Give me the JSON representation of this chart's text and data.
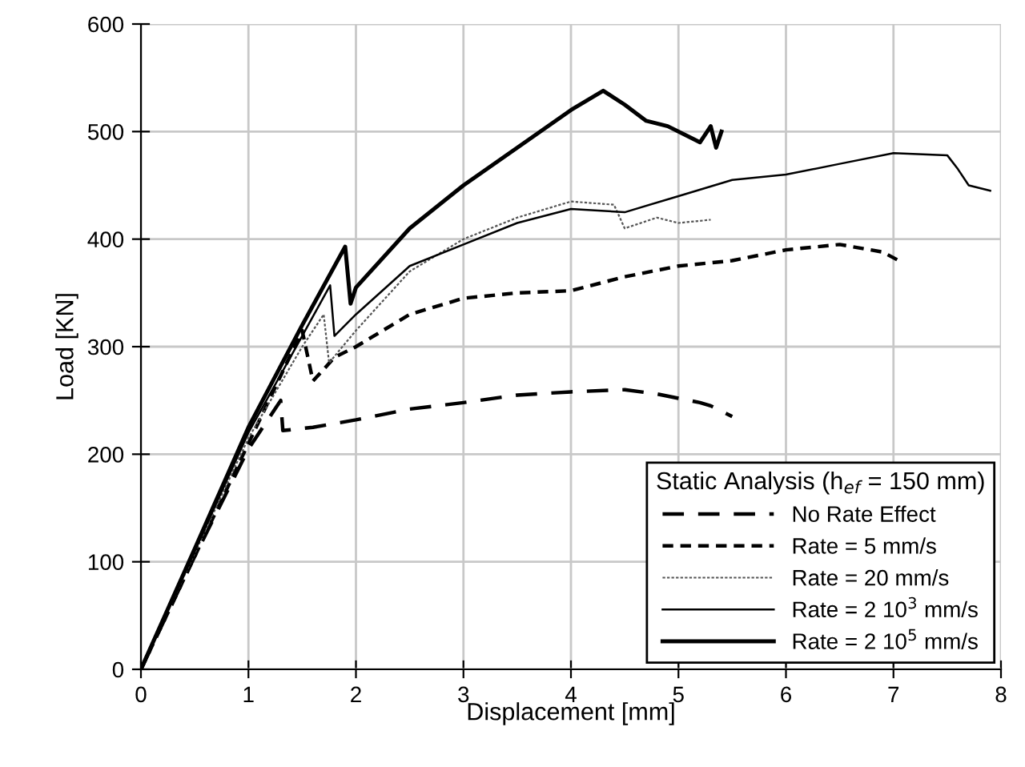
{
  "chart_data": {
    "type": "line",
    "xlabel": "Displacement [mm]",
    "ylabel": "Load [KN]",
    "legend_title": "Static Analysis (h$_{ef}$ = 150 mm)",
    "xlim": [
      0,
      8
    ],
    "ylim": [
      0,
      600
    ],
    "xticks": [
      0,
      1,
      2,
      3,
      4,
      5,
      6,
      7,
      8
    ],
    "yticks": [
      0,
      100,
      200,
      300,
      400,
      500,
      600
    ],
    "grid": true,
    "legend": "bottom right",
    "marker": "none",
    "series": [
      {
        "name": "No Rate Effect",
        "color": "#000000",
        "line_style": "dashed",
        "x": [
          0,
          0.5,
          1.0,
          1.3,
          1.32,
          1.6,
          2.0,
          2.5,
          3.0,
          3.5,
          4.0,
          4.5,
          4.8,
          5.0,
          5.2,
          5.3,
          5.4,
          5.5
        ],
        "values": [
          0,
          105,
          205,
          250,
          222,
          225,
          232,
          242,
          248,
          255,
          258,
          260,
          256,
          252,
          248,
          245,
          240,
          235
        ]
      },
      {
        "name": "Rate = 5 mm/s",
        "color": "#000000",
        "line_style": "dashed",
        "x": [
          0,
          0.5,
          1.0,
          1.5,
          1.6,
          1.8,
          2.0,
          2.5,
          3.0,
          3.5,
          4.0,
          4.5,
          5.0,
          5.5,
          6.0,
          6.5,
          6.9,
          7.05
        ],
        "values": [
          0,
          105,
          210,
          315,
          268,
          290,
          300,
          330,
          345,
          350,
          352,
          365,
          375,
          380,
          390,
          395,
          388,
          380
        ]
      },
      {
        "name": "Rate = 20 mm/s",
        "color": "#555555",
        "line_style": "dotted",
        "x": [
          0,
          0.5,
          1.0,
          1.5,
          1.7,
          1.75,
          2.0,
          2.5,
          3.0,
          3.5,
          4.0,
          4.4,
          4.5,
          4.8,
          5.0,
          5.3
        ],
        "values": [
          0,
          108,
          215,
          300,
          330,
          285,
          315,
          370,
          400,
          420,
          435,
          432,
          410,
          420,
          415,
          418
        ]
      },
      {
        "name": "Rate = 2 10$^{3}$ mm/s",
        "color": "#000000",
        "line_style": "solid",
        "x": [
          0,
          0.5,
          1.0,
          1.5,
          1.76,
          1.8,
          2.0,
          2.5,
          3.0,
          3.5,
          4.0,
          4.5,
          5.0,
          5.5,
          6.0,
          6.5,
          7.0,
          7.5,
          7.6,
          7.7,
          7.9
        ],
        "values": [
          0,
          110,
          220,
          310,
          357,
          310,
          330,
          375,
          395,
          415,
          428,
          425,
          440,
          455,
          460,
          470,
          480,
          478,
          465,
          450,
          445
        ]
      },
      {
        "name": "Rate = 2 10$^{5}$ mm/s",
        "color": "#000000",
        "line_style": "solid",
        "x": [
          0,
          0.5,
          1.0,
          1.5,
          1.9,
          1.95,
          2.0,
          2.5,
          3.0,
          3.5,
          4.0,
          4.3,
          4.5,
          4.7,
          4.9,
          5.1,
          5.2,
          5.3,
          5.35,
          5.4
        ],
        "values": [
          0,
          112,
          225,
          320,
          393,
          340,
          355,
          410,
          450,
          485,
          520,
          538,
          525,
          510,
          505,
          495,
          490,
          505,
          485,
          500
        ]
      }
    ]
  }
}
